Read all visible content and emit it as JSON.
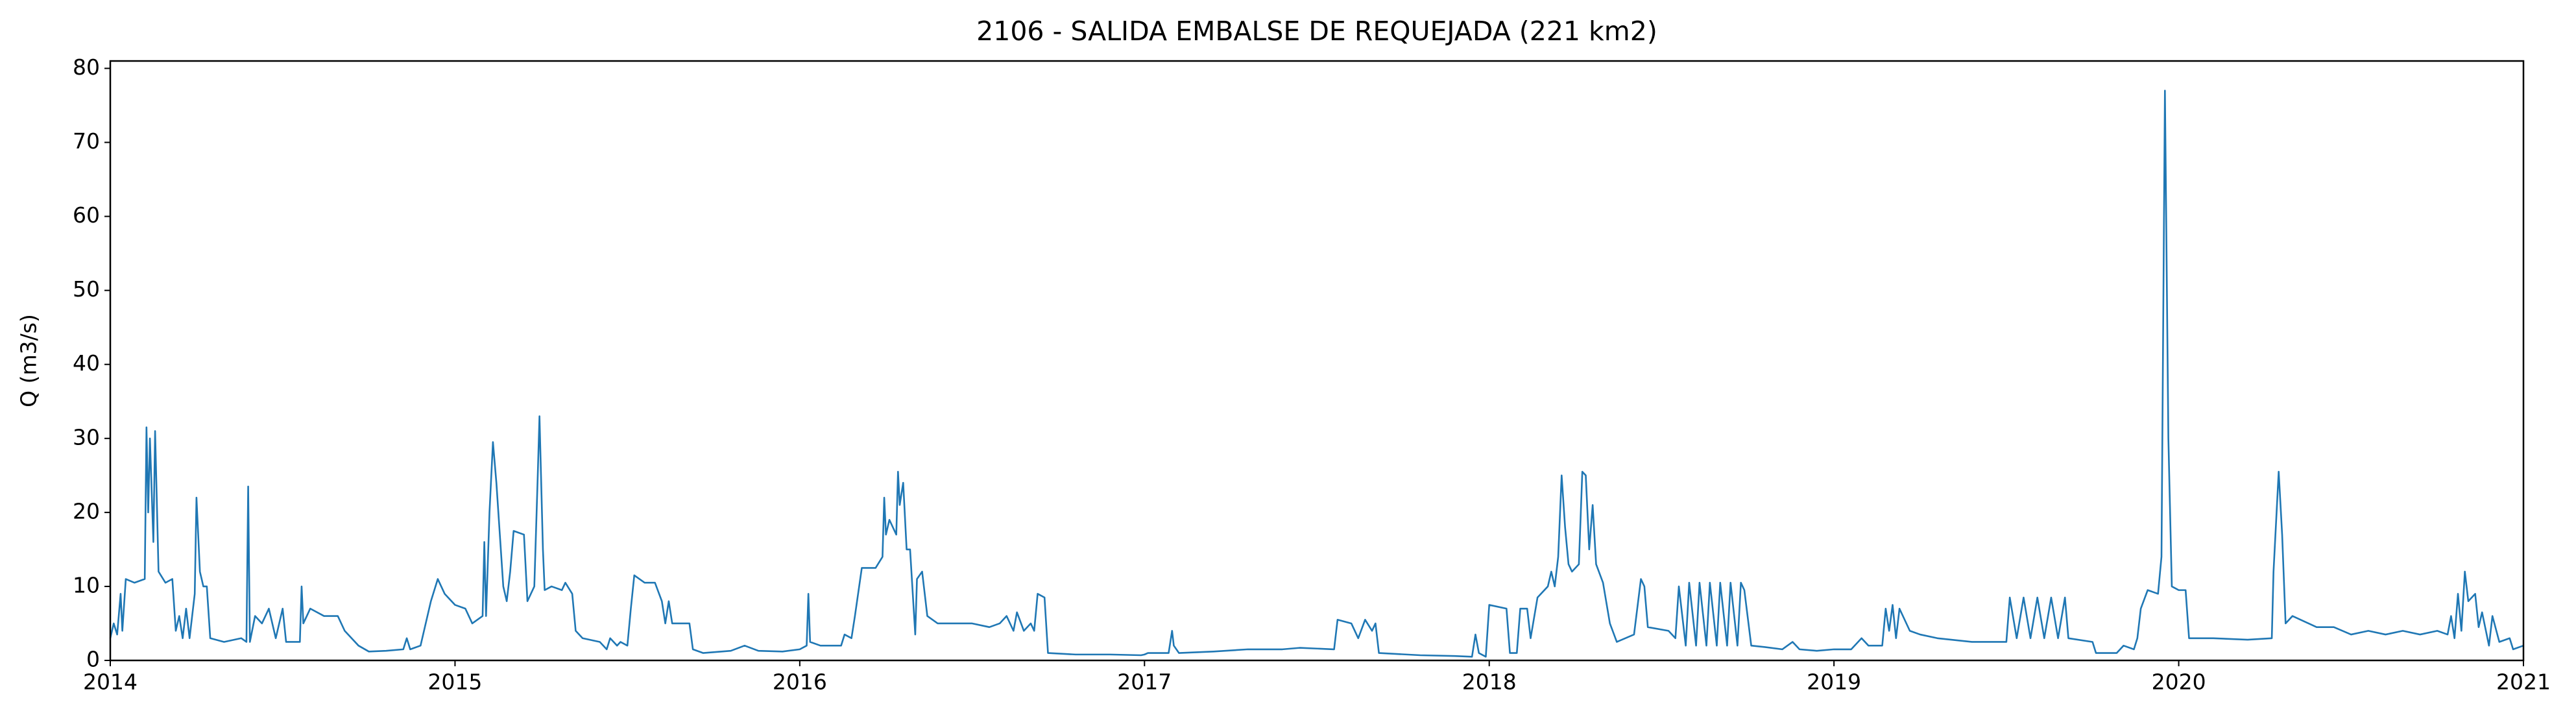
{
  "chart_data": {
    "type": "line",
    "title": "2106 - SALIDA EMBALSE DE REQUEJADA (221 km2)",
    "y_label": "Q (m3/s)",
    "color": "#1f77b4",
    "xlim": [
      2014,
      2021
    ],
    "xticks": [
      2014,
      2015,
      2016,
      2017,
      2018,
      2019,
      2020,
      2021
    ],
    "ylim": [
      0,
      81
    ],
    "yticks": [
      0,
      10,
      20,
      30,
      40,
      50,
      60,
      70,
      80
    ],
    "x": [
      2014,
      2014.01,
      2014.02,
      2014.03,
      2014.035,
      2014.045,
      2014.07,
      2014.1,
      2014.105,
      2014.11,
      2014.115,
      2014.125,
      2014.13,
      2014.14,
      2014.16,
      2014.18,
      2014.19,
      2014.2,
      2014.21,
      2014.22,
      2014.23,
      2014.245,
      2014.25,
      2014.26,
      2014.27,
      2014.28,
      2014.29,
      2014.33,
      2014.38,
      2014.395,
      2014.4,
      2014.405,
      2014.42,
      2014.44,
      2014.46,
      2014.48,
      2014.5,
      2014.51,
      2014.55,
      2014.555,
      2014.56,
      2014.58,
      2014.62,
      2014.66,
      2014.68,
      2014.72,
      2014.75,
      2014.8,
      2014.85,
      2014.86,
      2014.87,
      2014.9,
      2014.93,
      2014.95,
      2014.97,
      2015,
      2015.03,
      2015.05,
      2015.08,
      2015.085,
      2015.09,
      2015.1,
      2015.11,
      2015.12,
      2015.13,
      2015.14,
      2015.15,
      2015.16,
      2015.17,
      2015.2,
      2015.21,
      2015.23,
      2015.24,
      2015.245,
      2015.255,
      2015.26,
      2015.28,
      2015.31,
      2015.32,
      2015.34,
      2015.35,
      2015.37,
      2015.42,
      2015.44,
      2015.45,
      2015.47,
      2015.48,
      2015.5,
      2015.51,
      2015.52,
      2015.55,
      2015.58,
      2015.6,
      2015.61,
      2015.62,
      2015.63,
      2015.68,
      2015.69,
      2015.72,
      2015.8,
      2015.84,
      2015.88,
      2015.95,
      2016,
      2016.02,
      2016.025,
      2016.03,
      2016.06,
      2016.12,
      2016.13,
      2016.15,
      2016.16,
      2016.18,
      2016.22,
      2016.24,
      2016.245,
      2016.25,
      2016.26,
      2016.28,
      2016.285,
      2016.29,
      2016.3,
      2016.31,
      2016.32,
      2016.335,
      2016.34,
      2016.355,
      2016.36,
      2016.37,
      2016.4,
      2016.45,
      2016.5,
      2016.55,
      2016.58,
      2016.6,
      2016.62,
      2016.63,
      2016.65,
      2016.67,
      2016.68,
      2016.69,
      2016.71,
      2016.72,
      2016.8,
      2016.9,
      2016.99,
      2017,
      2017.01,
      2017.07,
      2017.08,
      2017.085,
      2017.1,
      2017.2,
      2017.3,
      2017.4,
      2017.45,
      2017.55,
      2017.56,
      2017.6,
      2017.62,
      2017.64,
      2017.66,
      2017.67,
      2017.68,
      2017.8,
      2017.9,
      2017.95,
      2017.96,
      2017.97,
      2017.99,
      2018,
      2018.05,
      2018.06,
      2018.08,
      2018.09,
      2018.11,
      2018.12,
      2018.14,
      2018.17,
      2018.18,
      2018.19,
      2018.2,
      2018.21,
      2018.22,
      2018.23,
      2018.24,
      2018.26,
      2018.27,
      2018.28,
      2018.29,
      2018.3,
      2018.31,
      2018.33,
      2018.35,
      2018.37,
      2018.42,
      2018.44,
      2018.45,
      2018.46,
      2018.52,
      2018.54,
      2018.55,
      2018.57,
      2018.58,
      2018.6,
      2018.61,
      2018.63,
      2018.64,
      2018.66,
      2018.67,
      2018.69,
      2018.7,
      2018.72,
      2018.73,
      2018.74,
      2018.76,
      2018.8,
      2018.85,
      2018.88,
      2018.9,
      2018.95,
      2019,
      2019.05,
      2019.08,
      2019.1,
      2019.14,
      2019.15,
      2019.16,
      2019.17,
      2019.18,
      2019.19,
      2019.22,
      2019.25,
      2019.3,
      2019.4,
      2019.5,
      2019.51,
      2019.53,
      2019.55,
      2019.57,
      2019.59,
      2019.61,
      2019.63,
      2019.65,
      2019.67,
      2019.68,
      2019.75,
      2019.76,
      2019.82,
      2019.84,
      2019.87,
      2019.88,
      2019.89,
      2019.91,
      2019.94,
      2019.95,
      2019.96,
      2019.97,
      2019.98,
      2020,
      2020.02,
      2020.03,
      2020.1,
      2020.2,
      2020.27,
      2020.275,
      2020.29,
      2020.3,
      2020.31,
      2020.33,
      2020.4,
      2020.45,
      2020.5,
      2020.55,
      2020.6,
      2020.65,
      2020.7,
      2020.75,
      2020.78,
      2020.79,
      2020.8,
      2020.81,
      2020.82,
      2020.83,
      2020.84,
      2020.86,
      2020.87,
      2020.88,
      2020.9,
      2020.91,
      2020.93,
      2020.96,
      2020.97,
      2021
    ],
    "values": [
      3,
      5,
      3.5,
      9,
      4,
      11,
      10.5,
      11,
      31.5,
      20,
      30,
      16,
      31,
      12,
      10.5,
      11,
      4,
      6,
      3,
      7,
      3,
      9,
      22,
      12,
      10,
      10,
      3,
      2.5,
      3,
      2.5,
      23.5,
      2.5,
      6,
      5,
      7,
      3,
      7,
      2.5,
      2.5,
      10,
      5,
      7,
      6,
      6,
      4,
      2,
      1.2,
      1.3,
      1.5,
      3,
      1.5,
      2,
      8,
      11,
      9,
      7.5,
      7,
      5,
      6,
      16,
      6,
      20,
      29.5,
      24,
      17,
      10,
      8,
      12,
      17.5,
      17,
      8,
      10,
      25,
      33,
      15,
      9.5,
      10,
      9.5,
      10.5,
      9,
      4,
      3,
      2.5,
      1.5,
      3,
      2,
      2.5,
      2,
      7,
      11.5,
      10.5,
      10.5,
      8,
      5,
      8,
      5,
      5,
      1.5,
      1,
      1.3,
      2,
      1.3,
      1.2,
      1.5,
      2,
      9,
      2.5,
      2,
      2,
      3.5,
      3,
      6,
      12.5,
      12.5,
      14,
      22,
      17,
      19,
      17,
      25.5,
      21,
      24,
      15,
      15,
      3.5,
      11,
      12,
      10,
      6,
      5,
      5,
      5,
      4.5,
      5,
      6,
      4,
      6.5,
      4,
      5,
      4,
      9,
      8.5,
      1,
      0.8,
      0.8,
      0.7,
      0.8,
      1,
      1,
      4,
      2,
      1,
      1.2,
      1.5,
      1.5,
      1.7,
      1.5,
      5.5,
      5,
      3,
      5.5,
      4,
      5,
      1,
      0.7,
      0.6,
      0.5,
      3.5,
      1,
      0.5,
      7.5,
      7,
      1,
      1,
      7,
      7,
      3,
      8.5,
      10,
      12,
      10,
      14,
      25,
      18,
      13,
      12,
      13,
      25.5,
      25,
      15,
      21,
      13,
      10.5,
      5,
      2.5,
      3.5,
      11,
      10,
      4.5,
      4,
      3,
      10,
      2,
      10.5,
      2,
      10.5,
      2,
      10.5,
      2,
      10.5,
      2,
      10.5,
      2,
      10.5,
      9.5,
      2,
      1.8,
      1.5,
      2.5,
      1.5,
      1.3,
      1.5,
      1.5,
      3,
      2,
      2,
      7,
      4,
      7.5,
      3,
      7,
      4,
      3.5,
      3,
      2.5,
      2.5,
      8.5,
      3,
      8.5,
      3,
      8.5,
      3,
      8.5,
      3,
      8.5,
      3,
      2.5,
      1,
      1,
      2,
      1.5,
      3,
      7,
      9.5,
      9,
      14,
      77,
      30,
      10,
      9.5,
      9.5,
      3,
      3,
      2.8,
      3,
      12,
      25.5,
      17,
      5,
      6,
      4.5,
      4.5,
      3.5,
      4,
      3.5,
      4,
      3.5,
      4,
      3.5,
      6,
      3,
      9,
      4,
      12,
      8,
      9,
      4.5,
      6.5,
      2,
      6,
      2.5,
      3,
      1.5,
      2
    ]
  }
}
